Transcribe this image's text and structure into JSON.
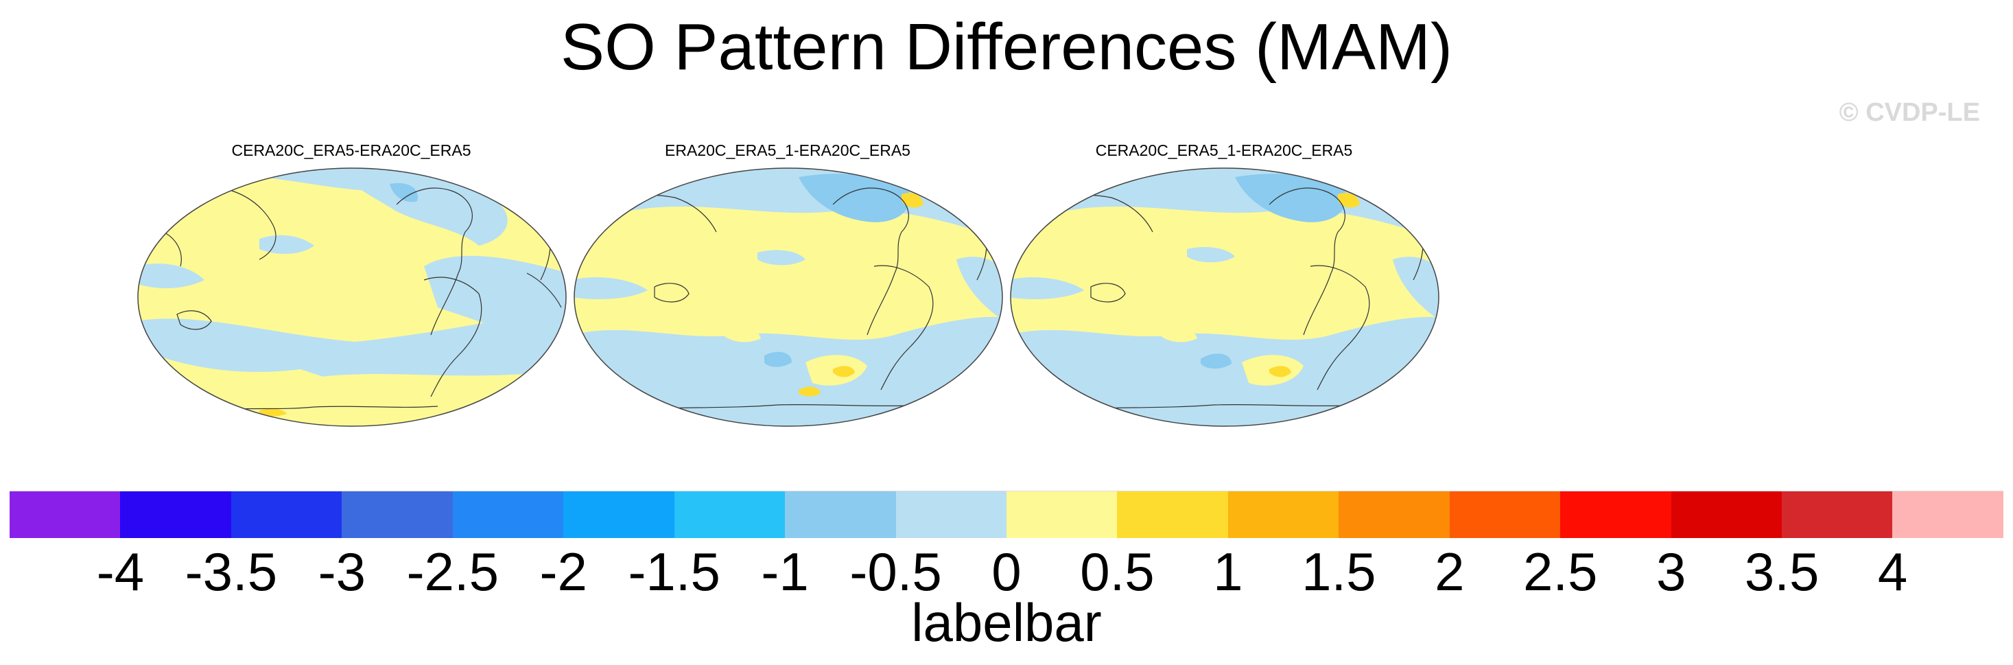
{
  "figure": {
    "title": "SO Pattern Differences (MAM)",
    "watermark": "© CVDP-LE"
  },
  "panels": [
    {
      "title": "CERA20C_ERA5-ERA20C_ERA5"
    },
    {
      "title": "ERA20C_ERA5_1-ERA20C_ERA5"
    },
    {
      "title": "CERA20C_ERA5_1-ERA20C_ERA5"
    }
  ],
  "colorbar": {
    "title": "labelbar",
    "tick_labels": [
      "-4",
      "-3.5",
      "-3",
      "-2.5",
      "-2",
      "-1.5",
      "-1",
      "-0.5",
      "0",
      "0.5",
      "1",
      "1.5",
      "2",
      "2.5",
      "3",
      "3.5",
      "4"
    ],
    "colors": [
      "#8b1fea",
      "#2a06f5",
      "#1f34ef",
      "#3c6be0",
      "#2388f5",
      "#0fa4fb",
      "#26c2f8",
      "#8acbef",
      "#b9dff2",
      "#fdf995",
      "#fddc2f",
      "#fdb40f",
      "#fd8b05",
      "#fd5a03",
      "#fd0d02",
      "#dd0202",
      "#d4282c",
      "#feb4b4"
    ],
    "min": -4,
    "max": 4,
    "step": 0.5
  },
  "map_colors": {
    "ocean_positive": "#fdf995",
    "ocean_negative": "#b9dff2",
    "stronger_negative": "#8acbef",
    "stronger_positive": "#fddc2f",
    "coastline": "#333333"
  }
}
